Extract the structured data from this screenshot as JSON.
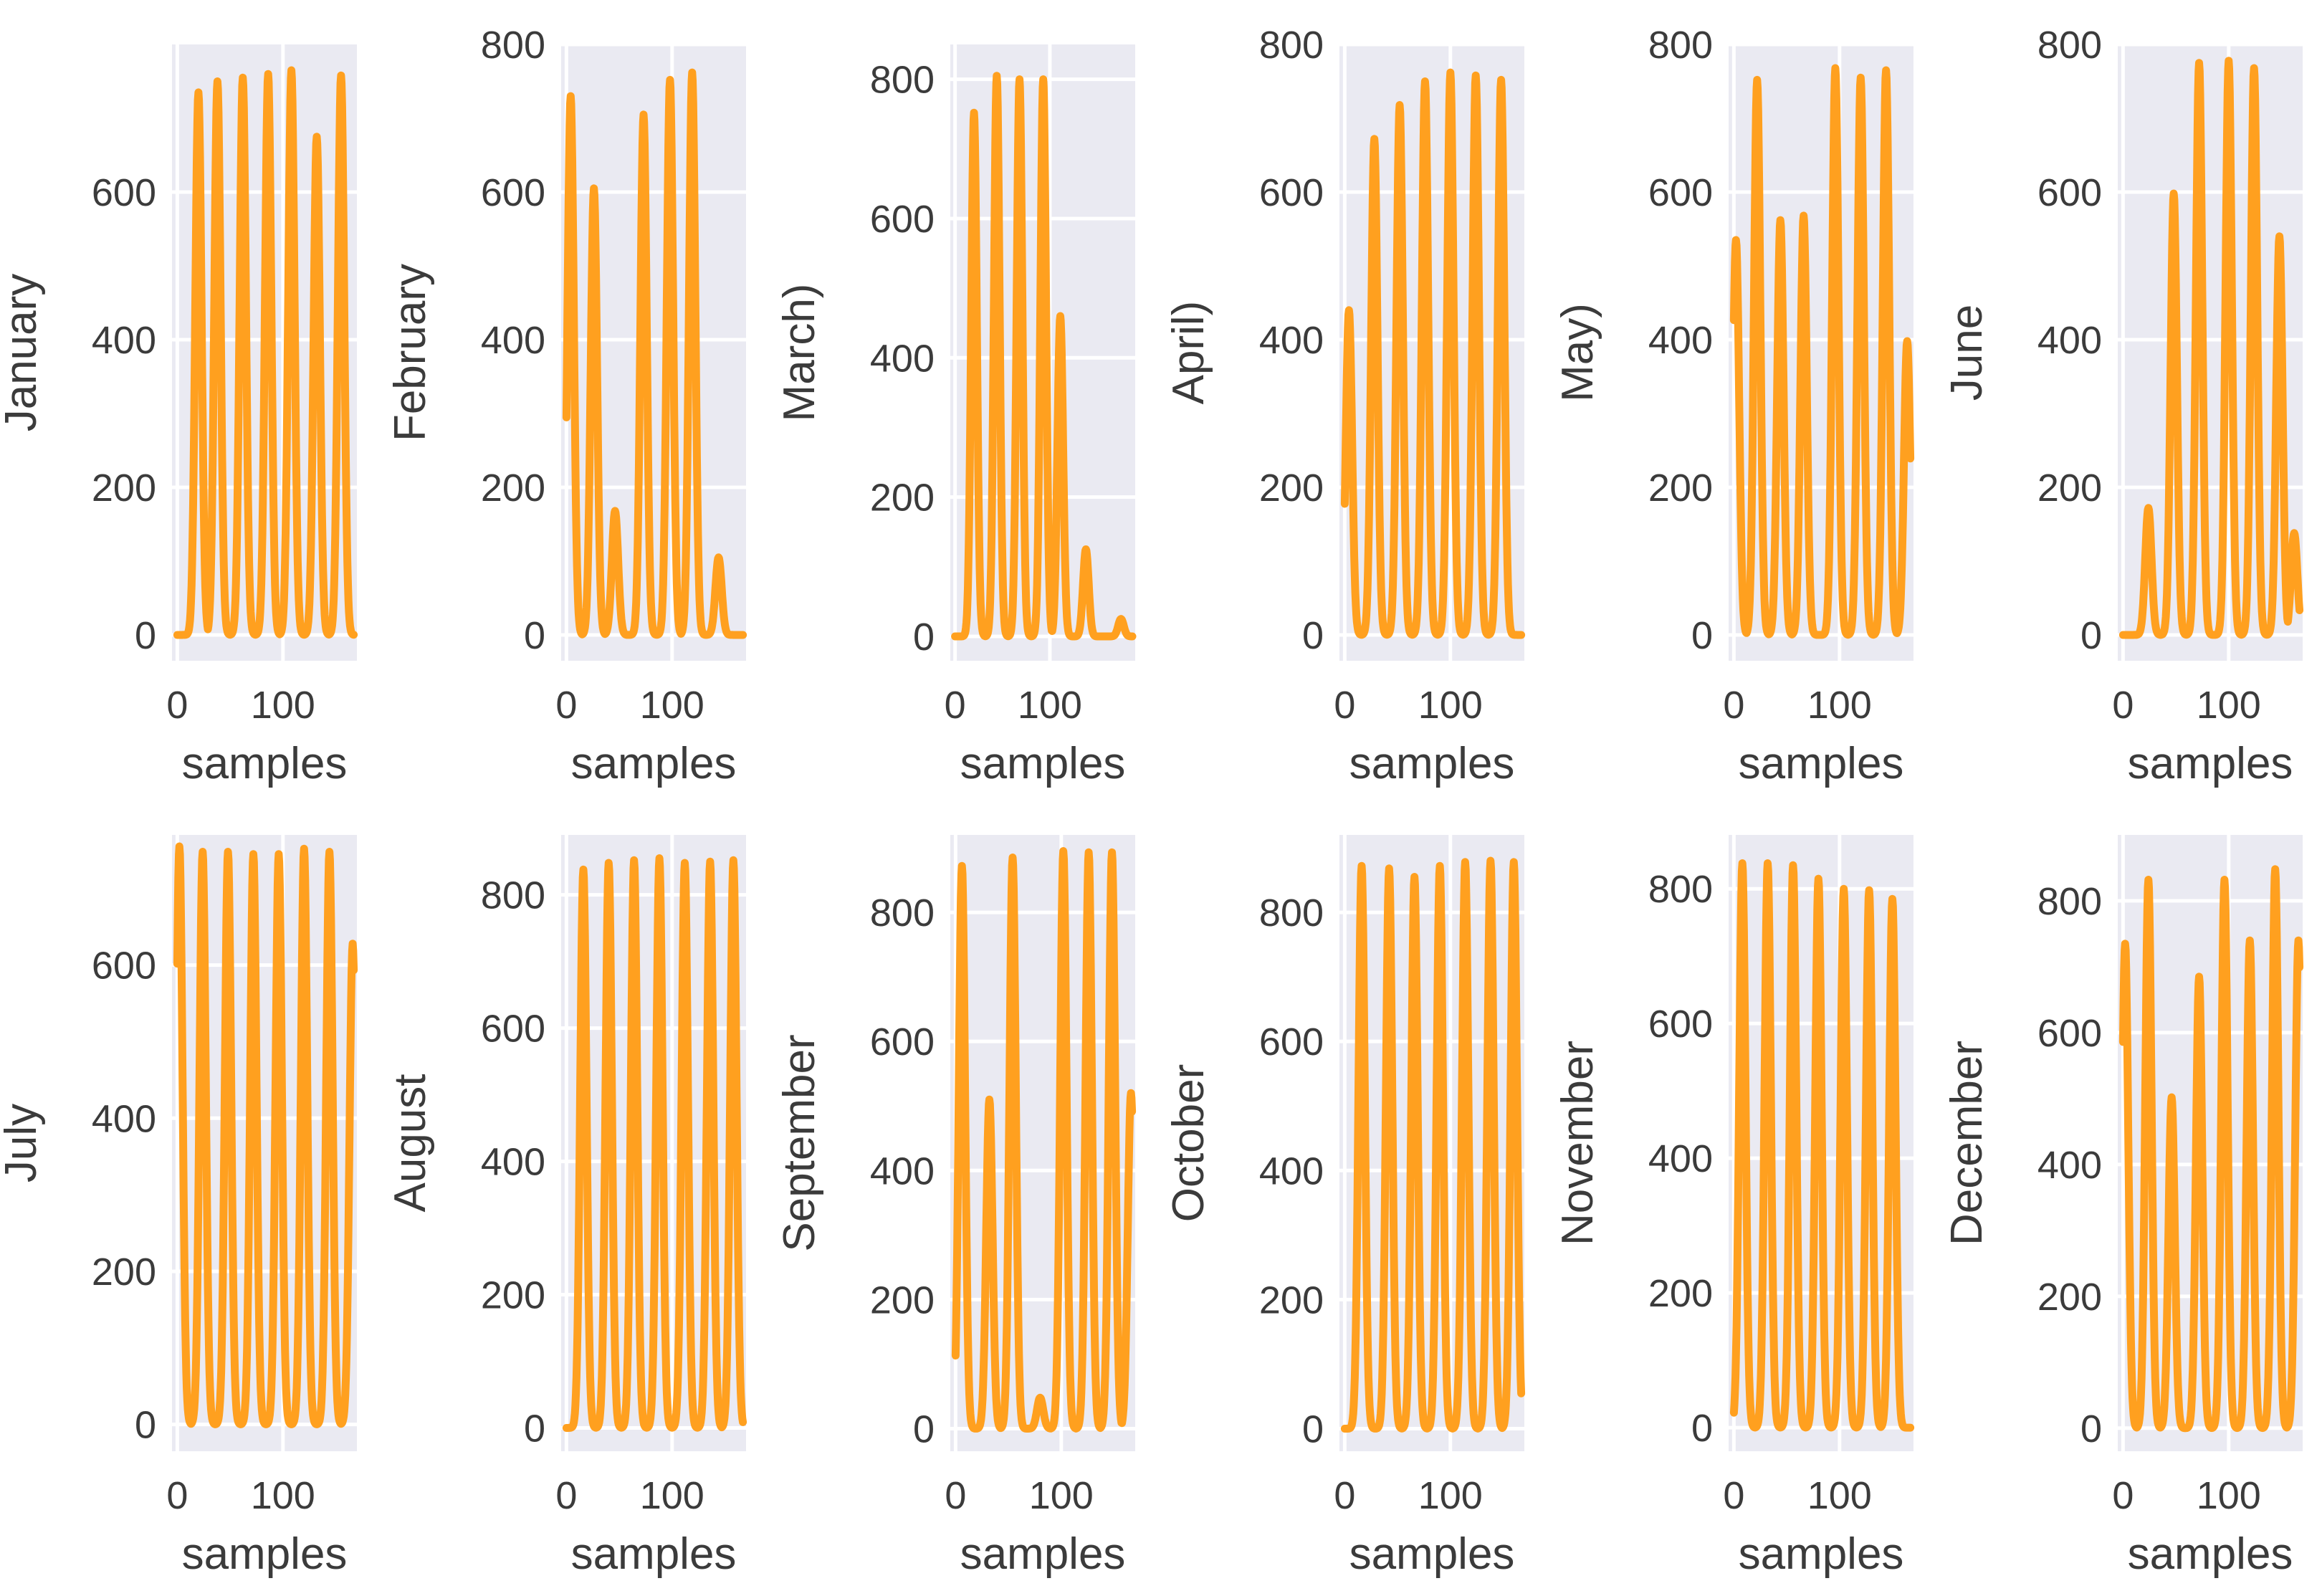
{
  "figure": {
    "background": "#ffffff",
    "plot_background": "#eaeaf2",
    "grid_color": "#ffffff",
    "text_color": "#3b3b3b"
  },
  "chart_data": [
    {
      "type": "line",
      "ylabel": "January",
      "xlabel": "samples",
      "xticks": [
        0,
        100
      ],
      "yticks": [
        0,
        200,
        400,
        600
      ],
      "xlim": [
        -5,
        170
      ],
      "ylim": [
        -35,
        800
      ],
      "color": "#ffa01f",
      "peaks": [
        [
          20,
          735
        ],
        [
          38,
          750
        ],
        [
          62,
          755
        ],
        [
          86,
          760
        ],
        [
          108,
          765
        ],
        [
          132,
          675
        ],
        [
          155,
          758
        ]
      ]
    },
    {
      "type": "line",
      "ylabel": "February",
      "xlabel": "samples",
      "xticks": [
        0,
        100
      ],
      "yticks": [
        0,
        200,
        400,
        600,
        800
      ],
      "xlim": [
        -5,
        170
      ],
      "ylim": [
        -35,
        800
      ],
      "color": "#ffa01f",
      "peaks": [
        [
          4,
          730
        ],
        [
          26,
          605
        ],
        [
          46,
          168
        ],
        [
          73,
          705
        ],
        [
          98,
          752
        ],
        [
          119,
          762
        ],
        [
          144,
          105
        ]
      ]
    },
    {
      "type": "line",
      "ylabel": "March)",
      "xlabel": "samples",
      "xticks": [
        0,
        100
      ],
      "yticks": [
        0,
        200,
        400,
        600,
        800
      ],
      "xlim": [
        -5,
        190
      ],
      "ylim": [
        -35,
        850
      ],
      "color": "#ffa01f",
      "peaks": [
        [
          20,
          752
        ],
        [
          44,
          805
        ],
        [
          68,
          800
        ],
        [
          93,
          800
        ],
        [
          111,
          460
        ],
        [
          138,
          125
        ],
        [
          175,
          25
        ]
      ]
    },
    {
      "type": "line",
      "ylabel": "April)",
      "xlabel": "samples",
      "xticks": [
        0,
        100
      ],
      "yticks": [
        0,
        200,
        400,
        600,
        800
      ],
      "xlim": [
        -5,
        170
      ],
      "ylim": [
        -35,
        800
      ],
      "color": "#ffa01f",
      "peaks": [
        [
          4,
          440
        ],
        [
          28,
          672
        ],
        [
          52,
          718
        ],
        [
          76,
          750
        ],
        [
          100,
          762
        ],
        [
          124,
          758
        ],
        [
          148,
          752
        ]
      ]
    },
    {
      "type": "line",
      "ylabel": "May)",
      "xlabel": "samples",
      "xticks": [
        0,
        100
      ],
      "yticks": [
        0,
        200,
        400,
        600,
        800
      ],
      "xlim": [
        -5,
        170
      ],
      "ylim": [
        -35,
        800
      ],
      "color": "#ffa01f",
      "peaks": [
        [
          2,
          535
        ],
        [
          22,
          752
        ],
        [
          44,
          562
        ],
        [
          66,
          568
        ],
        [
          96,
          768
        ],
        [
          120,
          755
        ],
        [
          144,
          765
        ],
        [
          164,
          398
        ]
      ]
    },
    {
      "type": "line",
      "ylabel": "June",
      "xlabel": "samples",
      "xticks": [
        0,
        100
      ],
      "yticks": [
        0,
        200,
        400,
        600,
        800
      ],
      "xlim": [
        -5,
        170
      ],
      "ylim": [
        -35,
        800
      ],
      "color": "#ffa01f",
      "peaks": [
        [
          24,
          172
        ],
        [
          48,
          598
        ],
        [
          72,
          775
        ],
        [
          100,
          778
        ],
        [
          124,
          768
        ],
        [
          148,
          540
        ],
        [
          162,
          138
        ]
      ]
    },
    {
      "type": "line",
      "ylabel": "July",
      "xlabel": "samples",
      "xticks": [
        0,
        100
      ],
      "yticks": [
        0,
        200,
        400,
        600
      ],
      "xlim": [
        -5,
        170
      ],
      "ylim": [
        -35,
        770
      ],
      "color": "#ffa01f",
      "peaks": [
        [
          2,
          755
        ],
        [
          24,
          748
        ],
        [
          48,
          748
        ],
        [
          72,
          745
        ],
        [
          96,
          745
        ],
        [
          120,
          752
        ],
        [
          144,
          748
        ],
        [
          166,
          628
        ]
      ]
    },
    {
      "type": "line",
      "ylabel": "August",
      "xlabel": "samples",
      "xticks": [
        0,
        100
      ],
      "yticks": [
        0,
        200,
        400,
        600,
        800
      ],
      "xlim": [
        -5,
        170
      ],
      "ylim": [
        -35,
        890
      ],
      "color": "#ffa01f",
      "peaks": [
        [
          16,
          838
        ],
        [
          40,
          848
        ],
        [
          64,
          852
        ],
        [
          88,
          855
        ],
        [
          112,
          848
        ],
        [
          136,
          850
        ],
        [
          158,
          852
        ]
      ]
    },
    {
      "type": "line",
      "ylabel": "September",
      "xlabel": "samples",
      "xticks": [
        0,
        100
      ],
      "yticks": [
        0,
        200,
        400,
        600,
        800
      ],
      "xlim": [
        -5,
        170
      ],
      "ylim": [
        -35,
        920
      ],
      "color": "#ffa01f",
      "peaks": [
        [
          6,
          872
        ],
        [
          32,
          510
        ],
        [
          54,
          885
        ],
        [
          80,
          48
        ],
        [
          102,
          895
        ],
        [
          126,
          893
        ],
        [
          148,
          893
        ],
        [
          166,
          520
        ]
      ]
    },
    {
      "type": "line",
      "ylabel": "October",
      "xlabel": "samples",
      "xticks": [
        0,
        100
      ],
      "yticks": [
        0,
        200,
        400,
        600,
        800
      ],
      "xlim": [
        -5,
        170
      ],
      "ylim": [
        -35,
        920
      ],
      "color": "#ffa01f",
      "peaks": [
        [
          16,
          872
        ],
        [
          42,
          868
        ],
        [
          66,
          855
        ],
        [
          90,
          872
        ],
        [
          114,
          878
        ],
        [
          138,
          880
        ],
        [
          160,
          878
        ]
      ]
    },
    {
      "type": "line",
      "ylabel": "November",
      "xlabel": "samples",
      "xticks": [
        0,
        100
      ],
      "yticks": [
        0,
        200,
        400,
        600,
        800
      ],
      "xlim": [
        -5,
        170
      ],
      "ylim": [
        -35,
        880
      ],
      "color": "#ffa01f",
      "peaks": [
        [
          8,
          838
        ],
        [
          32,
          838
        ],
        [
          56,
          835
        ],
        [
          80,
          815
        ],
        [
          104,
          800
        ],
        [
          128,
          798
        ],
        [
          150,
          785
        ]
      ]
    },
    {
      "type": "line",
      "ylabel": "December",
      "xlabel": "samples",
      "xticks": [
        0,
        100
      ],
      "yticks": [
        0,
        200,
        400,
        600,
        800
      ],
      "xlim": [
        -5,
        170
      ],
      "ylim": [
        -35,
        900
      ],
      "color": "#ffa01f",
      "peaks": [
        [
          2,
          735
        ],
        [
          24,
          832
        ],
        [
          46,
          502
        ],
        [
          72,
          685
        ],
        [
          96,
          832
        ],
        [
          120,
          740
        ],
        [
          144,
          848
        ],
        [
          166,
          740
        ]
      ]
    }
  ]
}
